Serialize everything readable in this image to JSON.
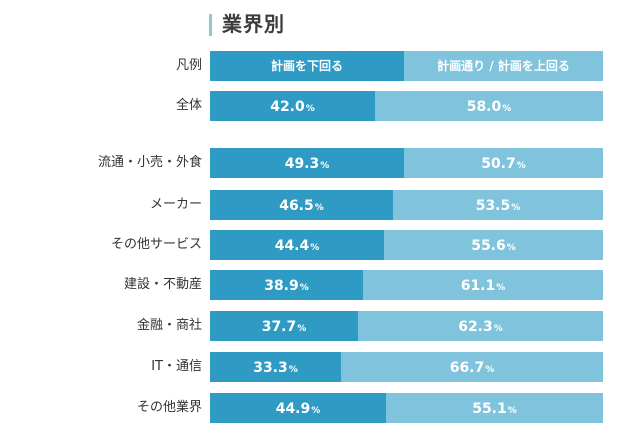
{
  "chart_data": {
    "type": "bar",
    "stacked": true,
    "orientation": "horizontal",
    "title": "業界別",
    "legend": {
      "label": "凡例",
      "entries": [
        "計画を下回る",
        "計画通り / 計画を上回る"
      ],
      "placement": "top-row"
    },
    "colors": {
      "below": "#2f9bc4",
      "meet_or_above": "#7fc4dc",
      "title_accent": "#8fc6da"
    },
    "unit": "%",
    "categories": [
      "全体",
      "流通・小売・外食",
      "メーカー",
      "その他サービス",
      "建設・不動産",
      "金融・商社",
      "IT・通信",
      "その他業界"
    ],
    "series": [
      {
        "name": "計画を下回る",
        "values": [
          42.0,
          49.3,
          46.5,
          44.4,
          38.9,
          37.7,
          33.3,
          44.9
        ]
      },
      {
        "name": "計画通り / 計画を上回る",
        "values": [
          58.0,
          50.7,
          53.5,
          55.6,
          61.1,
          62.3,
          66.7,
          55.1
        ]
      }
    ],
    "xlim": [
      0,
      100
    ]
  }
}
